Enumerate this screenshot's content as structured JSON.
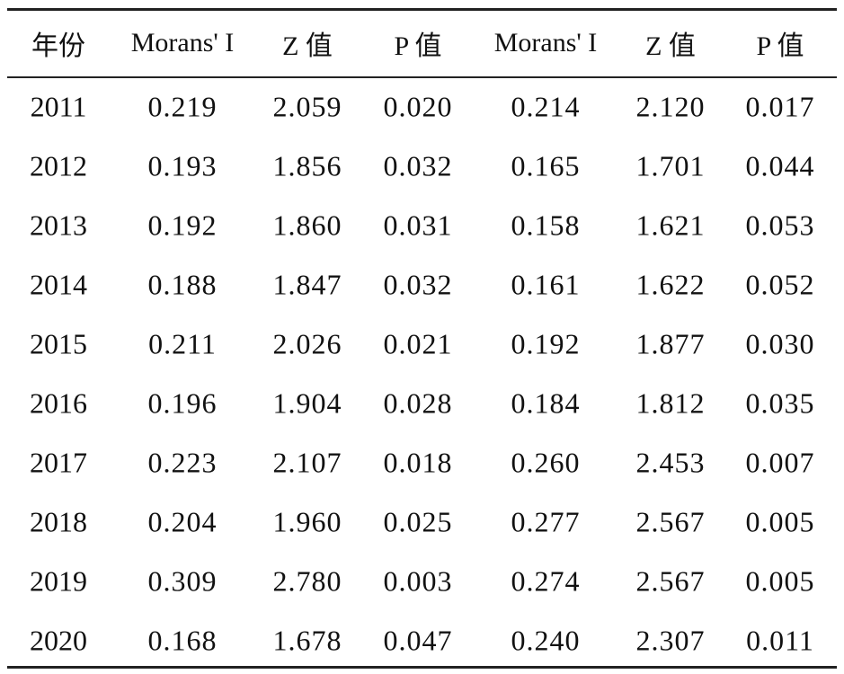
{
  "table": {
    "columns": [
      "年份",
      "Morans' I",
      "Z 值",
      "P 值",
      "Morans' I",
      "Z 值",
      "P 值"
    ],
    "rows": [
      [
        "2011",
        "0.219",
        "2.059",
        "0.020",
        "0.214",
        "2.120",
        "0.017"
      ],
      [
        "2012",
        "0.193",
        "1.856",
        "0.032",
        "0.165",
        "1.701",
        "0.044"
      ],
      [
        "2013",
        "0.192",
        "1.860",
        "0.031",
        "0.158",
        "1.621",
        "0.053"
      ],
      [
        "2014",
        "0.188",
        "1.847",
        "0.032",
        "0.161",
        "1.622",
        "0.052"
      ],
      [
        "2015",
        "0.211",
        "2.026",
        "0.021",
        "0.192",
        "1.877",
        "0.030"
      ],
      [
        "2016",
        "0.196",
        "1.904",
        "0.028",
        "0.184",
        "1.812",
        "0.035"
      ],
      [
        "2017",
        "0.223",
        "2.107",
        "0.018",
        "0.260",
        "2.453",
        "0.007"
      ],
      [
        "2018",
        "0.204",
        "1.960",
        "0.025",
        "0.277",
        "2.567",
        "0.005"
      ],
      [
        "2019",
        "0.309",
        "2.780",
        "0.003",
        "0.274",
        "2.567",
        "0.005"
      ],
      [
        "2020",
        "0.168",
        "1.678",
        "0.047",
        "0.240",
        "2.307",
        "0.011"
      ]
    ]
  }
}
